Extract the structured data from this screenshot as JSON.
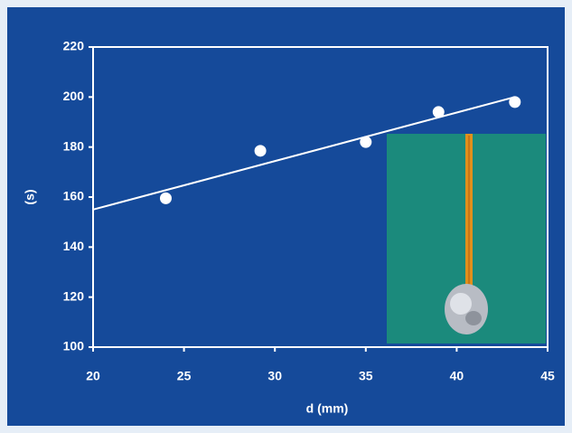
{
  "chart_data": {
    "type": "scatter",
    "x_label": "d (mm)",
    "y_label": "(s)",
    "x": [
      24,
      29.2,
      35,
      39,
      43.2
    ],
    "values": [
      159.5,
      178.5,
      182,
      194,
      198
    ],
    "color": "#ffffff",
    "trendline": {
      "x": [
        20,
        43.2
      ],
      "values": [
        155,
        200
      ]
    },
    "xlim": [
      20,
      45
    ],
    "xticks": [
      20,
      25,
      30,
      35,
      40,
      45
    ],
    "ylim": [
      100,
      220
    ],
    "yticks": [
      100,
      120,
      140,
      160,
      180,
      200,
      220
    ]
  }
}
